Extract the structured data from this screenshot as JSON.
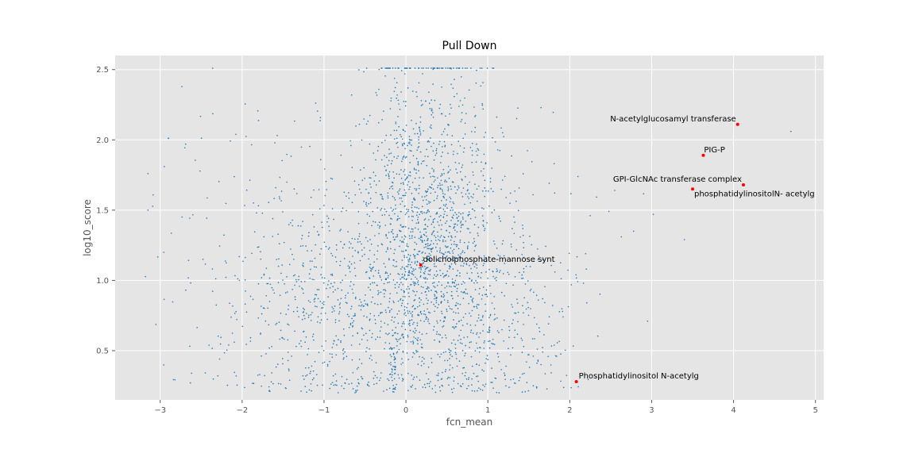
{
  "chart_data": {
    "type": "scatter",
    "title": "Pull Down",
    "xlabel": "fcn_mean",
    "ylabel": "log10_score",
    "xlim": [
      -3.55,
      5.1
    ],
    "ylim": [
      0.15,
      2.6
    ],
    "grid": true,
    "xticks": [
      -3,
      -2,
      -1,
      0,
      1,
      2,
      3,
      4,
      5
    ],
    "yticks": [
      0.5,
      1.0,
      1.5,
      2.0,
      2.5
    ],
    "xtick_labels": [
      "−3",
      "−2",
      "−1",
      "0",
      "1",
      "2",
      "3",
      "4",
      "5"
    ],
    "ytick_labels": [
      "0.5",
      "1.0",
      "1.5",
      "2.0",
      "2.5"
    ],
    "background_points": {
      "color": "#1f77b4",
      "approx_count": 2600,
      "distribution": "dense cloud centered near x=0.2, y 0.2-2.5, capped at y=2.51, sparse outliers to x=-3.2 and x=4.7"
    },
    "highlighted": [
      {
        "label": "N-acetylglucosamyl transferase",
        "x": 4.05,
        "y": 2.11
      },
      {
        "label": "PIG-P",
        "x": 3.63,
        "y": 1.89
      },
      {
        "label": "GPI-GlcNAc transferase complex",
        "x": 4.12,
        "y": 1.68
      },
      {
        "label": "phosphatidylinositolN- acetylg",
        "x": 3.5,
        "y": 1.65
      },
      {
        "label": "dolicholphosphate-mannose synt",
        "x": 0.18,
        "y": 1.11
      },
      {
        "label": "Phosphatidylinositol N-acetylg",
        "x": 2.08,
        "y": 0.28
      }
    ],
    "colors": {
      "panel_bg": "#e5e5e5",
      "grid": "#ffffff",
      "points": "#1f77b4",
      "highlight": "#ff0000"
    }
  }
}
